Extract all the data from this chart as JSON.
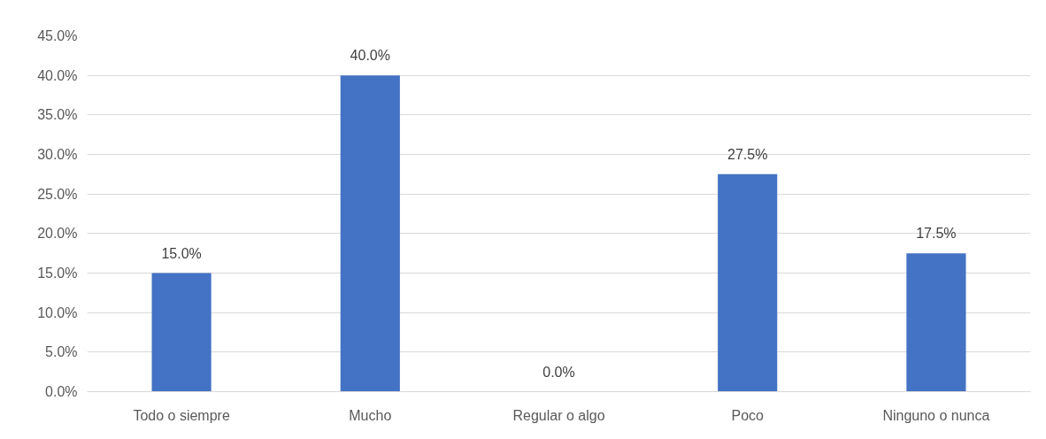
{
  "chart_data": {
    "type": "bar",
    "categories": [
      "Todo o siempre",
      "Mucho",
      "Regular o algo",
      "Poco",
      "Ninguno o nunca"
    ],
    "values": [
      15,
      40,
      0,
      27.5,
      17.5
    ],
    "value_labels": [
      "15.0%",
      "40.0%",
      "0.0%",
      "27.5%",
      "17.5%"
    ],
    "color": "#4472c4",
    "ylim": [
      0,
      45
    ],
    "yticks": [
      {
        "value": 0,
        "label": "0.0%"
      },
      {
        "value": 5,
        "label": "5.0%"
      },
      {
        "value": 10,
        "label": "10.0%"
      },
      {
        "value": 15,
        "label": "15.0%"
      },
      {
        "value": 20,
        "label": "20.0%"
      },
      {
        "value": 25,
        "label": "25.0%"
      },
      {
        "value": 30,
        "label": "30.0%"
      },
      {
        "value": 35,
        "label": "35.0%"
      },
      {
        "value": 40,
        "label": "40.0%"
      },
      {
        "value": 45,
        "label": "45.0%"
      }
    ],
    "grid": "y"
  }
}
